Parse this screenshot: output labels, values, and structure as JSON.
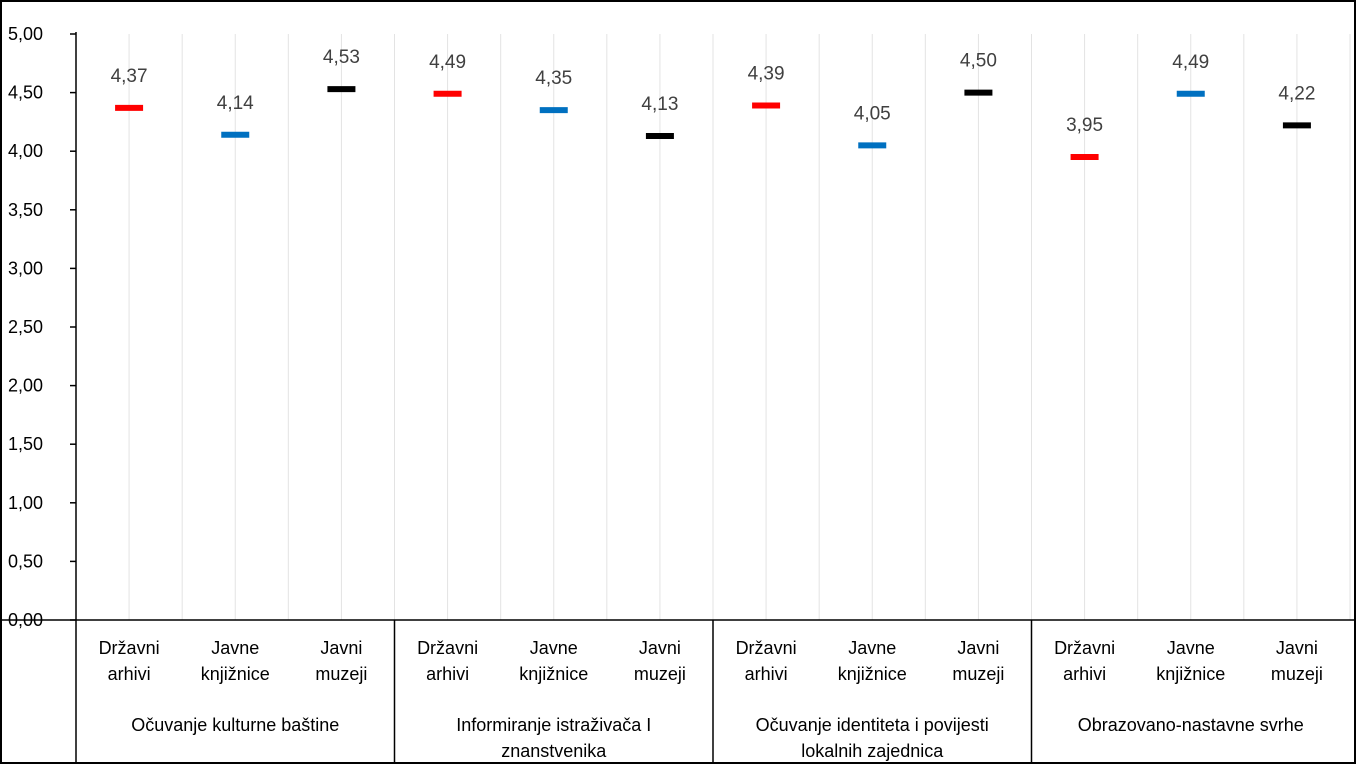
{
  "chart_data": {
    "type": "scatter",
    "title": "",
    "xlabel": "",
    "ylabel": "",
    "ylim": [
      0,
      5
    ],
    "y_ticks": [
      "0,00",
      "0,50",
      "1,00",
      "1,50",
      "2,00",
      "2,50",
      "3,00",
      "3,50",
      "4,00",
      "4,50",
      "5,00"
    ],
    "grid": "vertical",
    "legend": "none",
    "groups": [
      {
        "label": "Očuvanje kulturne baštine",
        "label_lines": [
          "Očuvanje kulturne baštine"
        ],
        "points": [
          {
            "cat_lines": [
              "Državni",
              "arhivi"
            ],
            "value": 4.37,
            "label": "4,37",
            "color": "#ff0000"
          },
          {
            "cat_lines": [
              "Javne",
              "knjižnice"
            ],
            "value": 4.14,
            "label": "4,14",
            "color": "#0070c0"
          },
          {
            "cat_lines": [
              "Javni",
              "muzeji"
            ],
            "value": 4.53,
            "label": "4,53",
            "color": "#000000"
          }
        ]
      },
      {
        "label": "Informiranje istraživača I znanstvenika",
        "label_lines": [
          "Informiranje istraživača I",
          "znanstvenika"
        ],
        "points": [
          {
            "cat_lines": [
              "Državni",
              "arhivi"
            ],
            "value": 4.49,
            "label": "4,49",
            "color": "#ff0000"
          },
          {
            "cat_lines": [
              "Javne",
              "knjižnice"
            ],
            "value": 4.35,
            "label": "4,35",
            "color": "#0070c0"
          },
          {
            "cat_lines": [
              "Javni",
              "muzeji"
            ],
            "value": 4.13,
            "label": "4,13",
            "color": "#000000"
          }
        ]
      },
      {
        "label": "Očuvanje identiteta i povijesti lokalnih zajednica",
        "label_lines": [
          "Očuvanje identiteta i povijesti",
          "lokalnih zajednica"
        ],
        "points": [
          {
            "cat_lines": [
              "Državni",
              "arhivi"
            ],
            "value": 4.39,
            "label": "4,39",
            "color": "#ff0000"
          },
          {
            "cat_lines": [
              "Javne",
              "knjižnice"
            ],
            "value": 4.05,
            "label": "4,05",
            "color": "#0070c0"
          },
          {
            "cat_lines": [
              "Javni",
              "muzeji"
            ],
            "value": 4.5,
            "label": "4,50",
            "color": "#000000"
          }
        ]
      },
      {
        "label": "Obrazovano-nastavne svrhe",
        "label_lines": [
          "Obrazovano-nastavne svrhe"
        ],
        "points": [
          {
            "cat_lines": [
              "Državni",
              "arhivi"
            ],
            "value": 3.95,
            "label": "3,95",
            "color": "#ff0000"
          },
          {
            "cat_lines": [
              "Javne",
              "knjižnice"
            ],
            "value": 4.49,
            "label": "4,49",
            "color": "#0070c0"
          },
          {
            "cat_lines": [
              "Javni",
              "muzeji"
            ],
            "value": 4.22,
            "label": "4,22",
            "color": "#000000"
          }
        ]
      }
    ]
  }
}
